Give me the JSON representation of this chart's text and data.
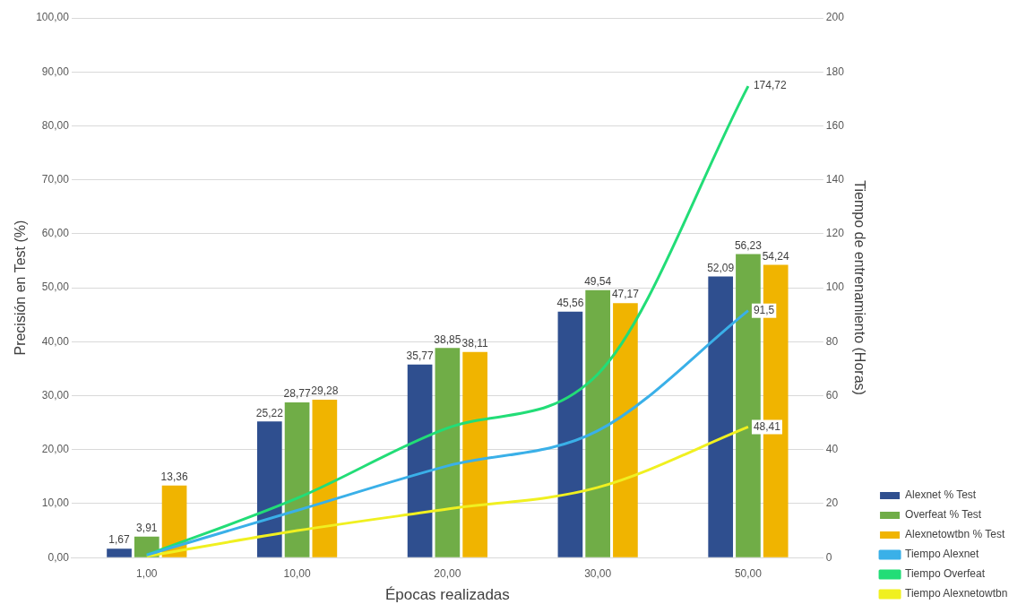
{
  "chart_data": {
    "type": "bar",
    "xlabel": "Épocas realizadas",
    "ylabel": "Precisión en Test (%)",
    "y2label": "Tiempo de entrenamiento (Horas)",
    "categories": [
      "1,00",
      "10,00",
      "20,00",
      "30,00",
      "50,00"
    ],
    "ylim": [
      0,
      100
    ],
    "yticks": [
      {
        "value": 0,
        "label": "0,00"
      },
      {
        "value": 10,
        "label": "10,00"
      },
      {
        "value": 20,
        "label": "20,00"
      },
      {
        "value": 30,
        "label": "30,00"
      },
      {
        "value": 40,
        "label": "40,00"
      },
      {
        "value": 50,
        "label": "50,00"
      },
      {
        "value": 60,
        "label": "60,00"
      },
      {
        "value": 70,
        "label": "70,00"
      },
      {
        "value": 80,
        "label": "80,00"
      },
      {
        "value": 90,
        "label": "90,00"
      },
      {
        "value": 100,
        "label": "100,00"
      }
    ],
    "y2lim": [
      0,
      200
    ],
    "y2ticks": [
      0,
      20,
      40,
      60,
      80,
      100,
      120,
      140,
      160,
      180,
      200
    ],
    "grid": "y",
    "legend": "right",
    "marker": "none",
    "series": [
      {
        "name": "Alexnet % Test",
        "color": "#2f4f8f",
        "values": [
          1.67,
          25.22,
          35.77,
          45.56,
          52.09
        ],
        "value_labels": [
          "1,67",
          "25,22",
          "35,77",
          "45,56",
          "52,09"
        ]
      },
      {
        "name": "Overfeat % Test",
        "color": "#70ad47",
        "values": [
          3.91,
          28.77,
          38.85,
          49.54,
          56.23
        ],
        "value_labels": [
          "3,91",
          "28,77",
          "38,85",
          "49,54",
          "56,23"
        ]
      },
      {
        "name": "Alexnetowtbn % Test",
        "color": "#f0b400",
        "values": [
          13.36,
          29.28,
          38.11,
          47.17,
          54.24
        ],
        "value_labels": [
          "13,36",
          "29,28",
          "38,11",
          "47,17",
          "54,24"
        ]
      },
      {
        "name": "Tiempo Alexnet",
        "type": "line",
        "axis": "y2",
        "color": "#3ab0e8",
        "values": [
          1,
          17.5,
          34,
          47,
          91.5
        ],
        "value_labels": [
          null,
          null,
          null,
          null,
          "91,5"
        ]
      },
      {
        "name": "Tiempo Overfeat",
        "type": "line",
        "axis": "y2",
        "color": "#22dd77",
        "values": [
          1,
          22,
          48,
          68,
          174.72
        ],
        "value_labels": [
          null,
          null,
          null,
          null,
          "174,72"
        ]
      },
      {
        "name": "Tiempo Alexnetowtbn",
        "type": "line",
        "axis": "y2",
        "color": "#f0f020",
        "values": [
          0.5,
          10,
          18,
          26,
          48.41
        ],
        "value_labels": [
          null,
          null,
          null,
          null,
          "48,41"
        ]
      }
    ]
  }
}
